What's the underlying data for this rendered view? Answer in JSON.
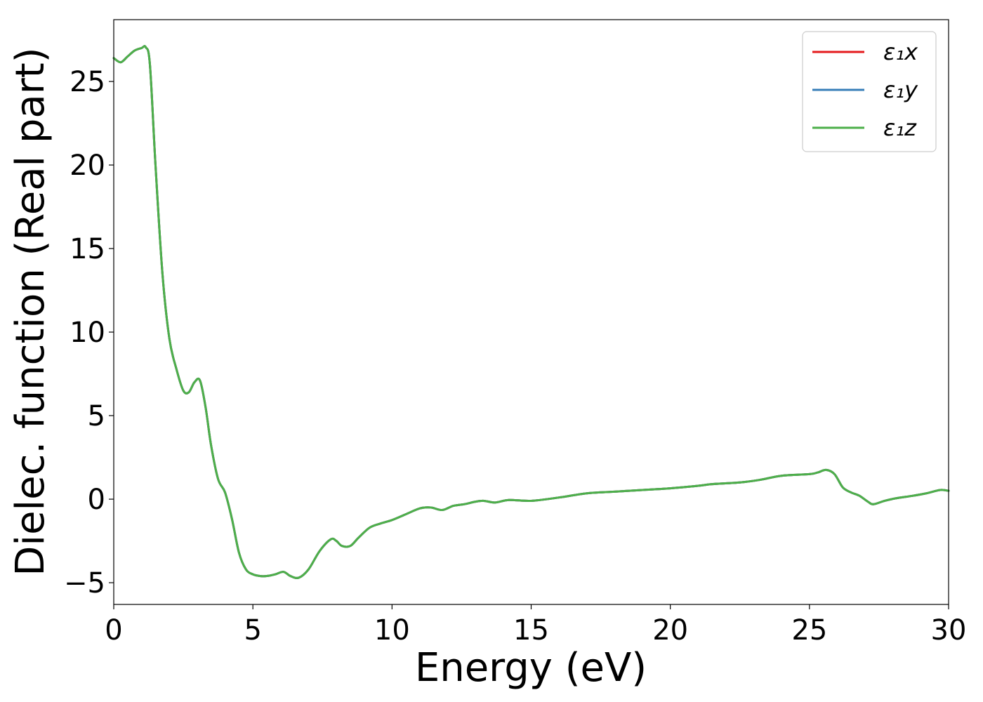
{
  "chart_data": {
    "type": "line",
    "xlabel": "Energy (eV)",
    "ylabel": "Dielec. function (Real part)",
    "xlim": [
      0,
      30
    ],
    "ylim": [
      -6.3,
      28.7
    ],
    "xticks": [
      0,
      5,
      10,
      15,
      20,
      25,
      30
    ],
    "xtick_labels": [
      "0",
      "5",
      "10",
      "15",
      "20",
      "25",
      "30"
    ],
    "yticks": [
      -5,
      0,
      5,
      10,
      15,
      20,
      25
    ],
    "ytick_labels": [
      "−5",
      "0",
      "5",
      "10",
      "15",
      "20",
      "25"
    ],
    "grid": false,
    "legend_position": "top-right",
    "x": [
      0,
      0.25,
      0.5,
      0.75,
      1.0,
      1.15,
      1.3,
      1.5,
      1.75,
      2.0,
      2.25,
      2.5,
      2.7,
      2.9,
      3.1,
      3.3,
      3.5,
      3.75,
      4.0,
      4.25,
      4.5,
      4.75,
      5.0,
      5.25,
      5.5,
      5.8,
      6.1,
      6.35,
      6.65,
      7.0,
      7.4,
      7.8,
      8.0,
      8.2,
      8.5,
      8.8,
      9.2,
      9.6,
      10.0,
      10.5,
      11.0,
      11.4,
      11.8,
      12.2,
      12.6,
      13.0,
      13.3,
      13.7,
      14.2,
      15.0,
      16.0,
      17.0,
      18.0,
      19.0,
      20.0,
      21.0,
      21.5,
      22.5,
      23.2,
      24.0,
      25.0,
      25.3,
      25.6,
      25.9,
      26.2,
      26.5,
      26.8,
      27.1,
      27.3,
      27.7,
      28.1,
      28.7,
      29.2,
      29.7,
      30.0
    ],
    "series": [
      {
        "name": "ε₁x",
        "color": "#e41a1c",
        "values": [
          26.4,
          26.15,
          26.5,
          26.85,
          27.0,
          27.05,
          26.0,
          20.0,
          13.5,
          9.6,
          7.8,
          6.5,
          6.4,
          7.0,
          7.1,
          5.5,
          3.2,
          1.2,
          0.4,
          -1.2,
          -3.2,
          -4.2,
          -4.5,
          -4.6,
          -4.6,
          -4.5,
          -4.35,
          -4.6,
          -4.7,
          -4.2,
          -3.1,
          -2.4,
          -2.5,
          -2.8,
          -2.8,
          -2.3,
          -1.7,
          -1.45,
          -1.25,
          -0.9,
          -0.55,
          -0.5,
          -0.65,
          -0.4,
          -0.3,
          -0.15,
          -0.1,
          -0.2,
          -0.05,
          -0.1,
          0.1,
          0.35,
          0.45,
          0.55,
          0.65,
          0.8,
          0.9,
          1.0,
          1.15,
          1.4,
          1.5,
          1.6,
          1.75,
          1.5,
          0.7,
          0.4,
          0.2,
          -0.15,
          -0.3,
          -0.1,
          0.05,
          0.2,
          0.35,
          0.55,
          0.5
        ]
      },
      {
        "name": "ε₁y",
        "color": "#377eb8",
        "values": [
          26.4,
          26.15,
          26.5,
          26.85,
          27.0,
          27.05,
          26.0,
          20.0,
          13.5,
          9.6,
          7.8,
          6.5,
          6.4,
          7.0,
          7.1,
          5.5,
          3.2,
          1.2,
          0.4,
          -1.2,
          -3.2,
          -4.2,
          -4.5,
          -4.6,
          -4.6,
          -4.5,
          -4.35,
          -4.6,
          -4.7,
          -4.2,
          -3.1,
          -2.4,
          -2.5,
          -2.8,
          -2.8,
          -2.3,
          -1.7,
          -1.45,
          -1.25,
          -0.9,
          -0.55,
          -0.5,
          -0.65,
          -0.4,
          -0.3,
          -0.15,
          -0.1,
          -0.2,
          -0.05,
          -0.1,
          0.1,
          0.35,
          0.45,
          0.55,
          0.65,
          0.8,
          0.9,
          1.0,
          1.15,
          1.4,
          1.5,
          1.6,
          1.75,
          1.5,
          0.7,
          0.4,
          0.2,
          -0.15,
          -0.3,
          -0.1,
          0.05,
          0.2,
          0.35,
          0.55,
          0.5
        ]
      },
      {
        "name": "ε₁z",
        "color": "#4daf4a",
        "values": [
          26.4,
          26.15,
          26.5,
          26.85,
          27.0,
          27.05,
          26.0,
          20.0,
          13.5,
          9.6,
          7.8,
          6.5,
          6.4,
          7.0,
          7.1,
          5.5,
          3.2,
          1.2,
          0.4,
          -1.2,
          -3.2,
          -4.2,
          -4.5,
          -4.6,
          -4.6,
          -4.5,
          -4.35,
          -4.6,
          -4.7,
          -4.2,
          -3.1,
          -2.4,
          -2.5,
          -2.8,
          -2.8,
          -2.3,
          -1.7,
          -1.45,
          -1.25,
          -0.9,
          -0.55,
          -0.5,
          -0.65,
          -0.4,
          -0.3,
          -0.15,
          -0.1,
          -0.2,
          -0.05,
          -0.1,
          0.1,
          0.35,
          0.45,
          0.55,
          0.65,
          0.8,
          0.9,
          1.0,
          1.15,
          1.4,
          1.5,
          1.6,
          1.75,
          1.5,
          0.7,
          0.4,
          0.2,
          -0.15,
          -0.3,
          -0.1,
          0.05,
          0.2,
          0.35,
          0.55,
          0.5
        ]
      }
    ]
  }
}
